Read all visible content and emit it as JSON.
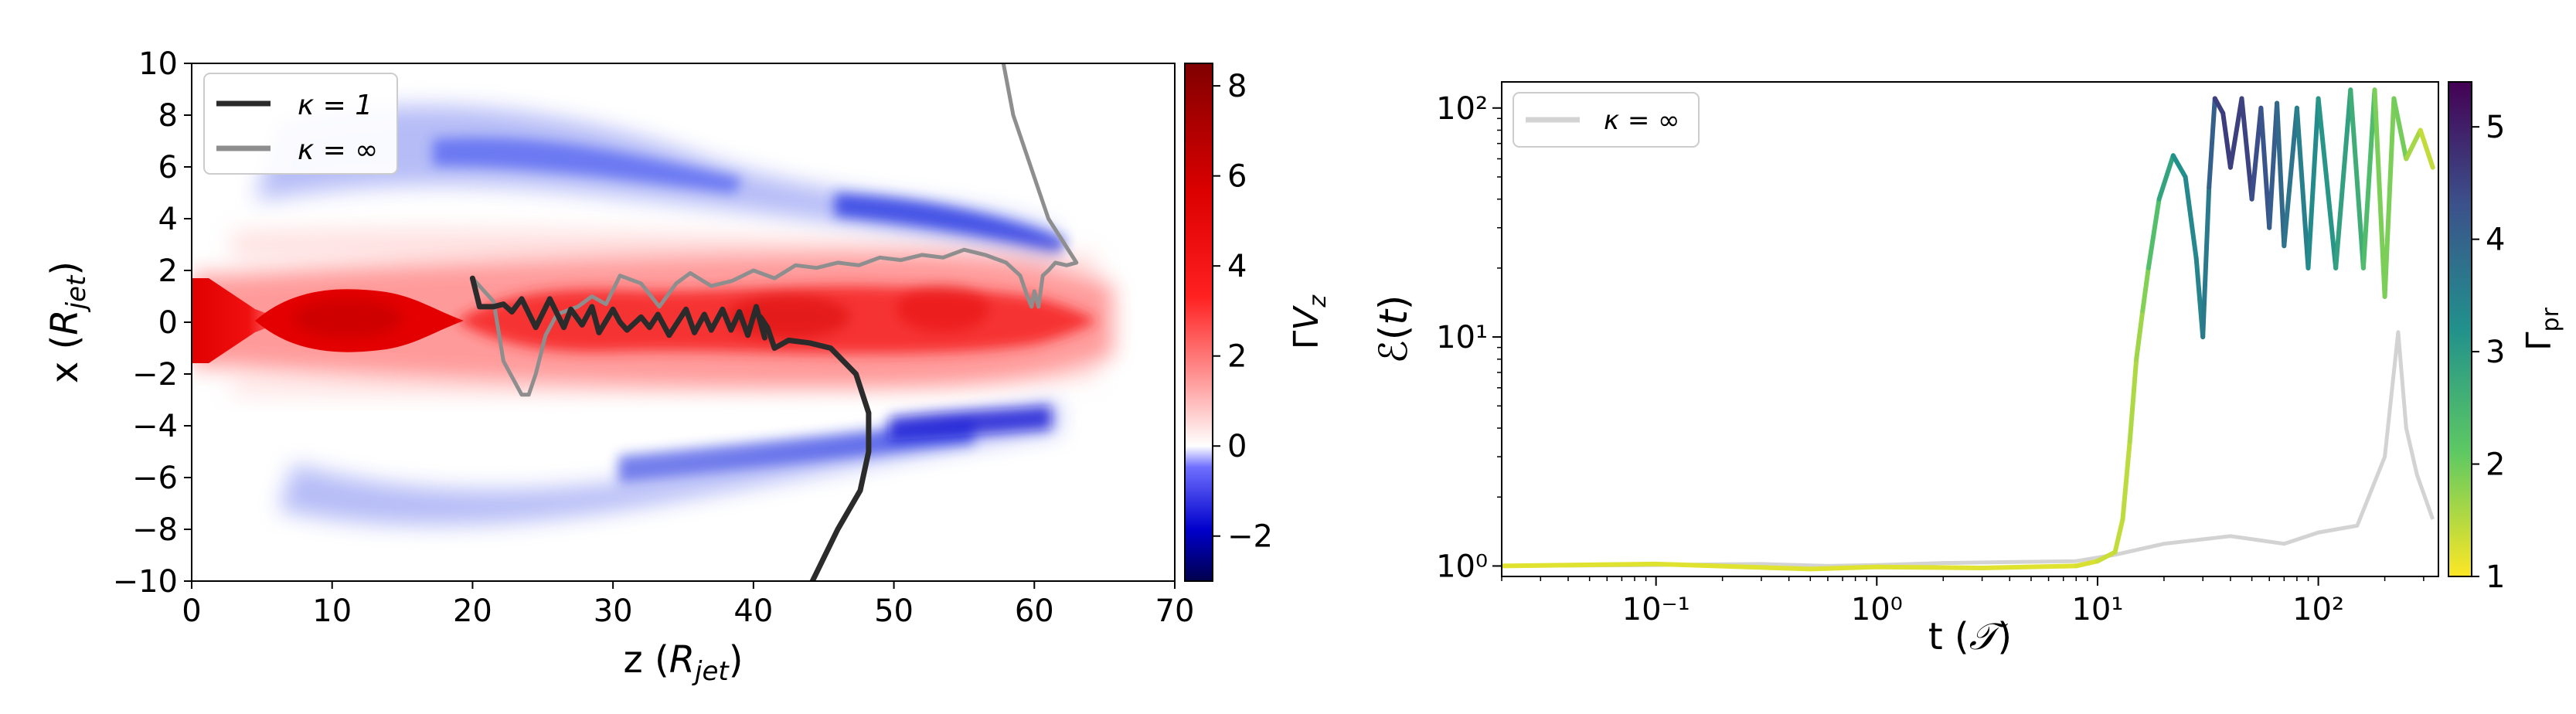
{
  "chart_data": [
    {
      "type": "heatmap",
      "xlabel": "z (R_jet)",
      "ylabel": "x (R_jet)",
      "xlim": [
        0,
        70
      ],
      "ylim": [
        -10,
        10
      ],
      "x_ticks": [
        "0",
        "10",
        "20",
        "30",
        "40",
        "50",
        "60",
        "70"
      ],
      "y_ticks": [
        "10",
        "8",
        "6",
        "4",
        "2",
        "0",
        "−2",
        "−4",
        "−6",
        "−8",
        "−10"
      ],
      "colorbar": {
        "label": "ΓV_z",
        "range": [
          -3,
          8.5
        ],
        "ticks": [
          "8",
          "6",
          "4",
          "2",
          "0",
          "−2"
        ],
        "colormap": "seismic"
      },
      "legend": {
        "placement": "top-left",
        "entries": [
          "κ = 1",
          "κ = ∞"
        ]
      },
      "series": [
        {
          "name": "κ = 1",
          "color": "#2b2b2b",
          "points": [
            [
              44.2,
              -10.0
            ],
            [
              46.0,
              -8.0
            ],
            [
              47.6,
              -6.5
            ],
            [
              48.2,
              -5.0
            ],
            [
              48.2,
              -3.5
            ],
            [
              47.3,
              -2.0
            ],
            [
              45.5,
              -1.0
            ],
            [
              44.0,
              -0.8
            ],
            [
              42.5,
              -0.7
            ],
            [
              41.5,
              -1.0
            ],
            [
              41.0,
              -0.2
            ],
            [
              40.5,
              0.2
            ],
            [
              40.8,
              -0.6
            ],
            [
              40.2,
              0.6
            ],
            [
              39.6,
              -0.5
            ],
            [
              39.0,
              0.4
            ],
            [
              38.4,
              -0.3
            ],
            [
              37.8,
              0.5
            ],
            [
              37.0,
              -0.3
            ],
            [
              36.5,
              0.3
            ],
            [
              35.8,
              -0.4
            ],
            [
              35.2,
              0.5
            ],
            [
              34.6,
              0.0
            ],
            [
              34.0,
              -0.5
            ],
            [
              33.2,
              0.3
            ],
            [
              32.6,
              -0.2
            ],
            [
              32.0,
              0.2
            ],
            [
              31.0,
              -0.3
            ],
            [
              30.5,
              0.0
            ],
            [
              30.0,
              0.5
            ],
            [
              29.0,
              -0.4
            ],
            [
              28.5,
              0.6
            ],
            [
              27.8,
              -0.1
            ],
            [
              27.0,
              0.5
            ],
            [
              26.5,
              -0.2
            ],
            [
              25.5,
              0.9
            ],
            [
              24.5,
              -0.2
            ],
            [
              23.5,
              0.9
            ],
            [
              22.8,
              0.4
            ],
            [
              22.2,
              0.7
            ],
            [
              21.5,
              0.6
            ],
            [
              20.5,
              0.6
            ],
            [
              20.0,
              1.7
            ]
          ]
        },
        {
          "name": "κ = ∞",
          "color": "#8e8e8e",
          "points": [
            [
              20.0,
              1.7
            ],
            [
              21.5,
              0.8
            ],
            [
              22.2,
              -1.5
            ],
            [
              23.5,
              -2.8
            ],
            [
              24.0,
              -2.8
            ],
            [
              24.5,
              -2.0
            ],
            [
              25.2,
              -0.5
            ],
            [
              26.0,
              0.3
            ],
            [
              27.5,
              0.6
            ],
            [
              28.5,
              1.0
            ],
            [
              29.5,
              0.7
            ],
            [
              30.5,
              1.8
            ],
            [
              32.0,
              1.5
            ],
            [
              33.3,
              0.6
            ],
            [
              34.5,
              1.5
            ],
            [
              35.5,
              1.9
            ],
            [
              37.0,
              1.4
            ],
            [
              38.5,
              1.6
            ],
            [
              40.0,
              2.0
            ],
            [
              41.5,
              1.7
            ],
            [
              43.0,
              2.2
            ],
            [
              44.5,
              2.1
            ],
            [
              46.0,
              2.3
            ],
            [
              47.5,
              2.2
            ],
            [
              49.0,
              2.5
            ],
            [
              50.5,
              2.4
            ],
            [
              52.0,
              2.6
            ],
            [
              53.5,
              2.5
            ],
            [
              55.0,
              2.8
            ],
            [
              56.5,
              2.6
            ],
            [
              58.0,
              2.3
            ],
            [
              59.0,
              1.8
            ],
            [
              59.5,
              1.0
            ],
            [
              59.8,
              0.6
            ],
            [
              60.0,
              1.2
            ],
            [
              60.3,
              0.6
            ],
            [
              60.6,
              1.8
            ],
            [
              61.0,
              2.0
            ],
            [
              61.5,
              2.3
            ],
            [
              62.3,
              2.2
            ],
            [
              63.0,
              2.3
            ],
            [
              61.0,
              4.0
            ],
            [
              58.5,
              8.0
            ],
            [
              57.8,
              10.0
            ]
          ]
        }
      ]
    },
    {
      "type": "line",
      "xlabel": "t (𝒯)",
      "ylabel": "ℰ(t)",
      "xscale": "log",
      "yscale": "log",
      "xlim": [
        0.02,
        350
      ],
      "ylim": [
        0.9,
        130
      ],
      "x_ticks": [
        "10⁻¹",
        "10⁰",
        "10¹",
        "10²"
      ],
      "y_ticks": [
        "10²",
        "10¹",
        "10⁰"
      ],
      "colorbar": {
        "label": "Γ_pr",
        "range": [
          1,
          5.4
        ],
        "ticks": [
          "5",
          "4",
          "3",
          "2",
          "1"
        ],
        "colormap": "viridis_r"
      },
      "legend": {
        "placement": "top-left",
        "entries": [
          "κ = ∞"
        ]
      },
      "series": [
        {
          "name": "κ = ∞",
          "color": "#d3d3d3",
          "points": [
            [
              0.02,
              1.0
            ],
            [
              0.1,
              1.01
            ],
            [
              0.3,
              1.02
            ],
            [
              0.6,
              1.0
            ],
            [
              1.0,
              1.01
            ],
            [
              2.0,
              1.03
            ],
            [
              4.0,
              1.04
            ],
            [
              8.0,
              1.05
            ],
            [
              12.0,
              1.12
            ],
            [
              20.0,
              1.25
            ],
            [
              40.0,
              1.35
            ],
            [
              70.0,
              1.25
            ],
            [
              100.0,
              1.4
            ],
            [
              150.0,
              1.5
            ],
            [
              200.0,
              3.0
            ],
            [
              230.0,
              10.5
            ],
            [
              250.0,
              4.0
            ],
            [
              280.0,
              2.5
            ],
            [
              330.0,
              1.6
            ]
          ]
        },
        {
          "name": "",
          "colored_by": "Γ_pr",
          "points": [
            [
              0.02,
              1.0,
              1.2
            ],
            [
              0.1,
              1.02,
              1.2
            ],
            [
              0.5,
              0.97,
              1.2
            ],
            [
              1.0,
              0.99,
              1.2
            ],
            [
              3.0,
              0.98,
              1.2
            ],
            [
              8.0,
              1.0,
              1.2
            ],
            [
              10.0,
              1.05,
              1.3
            ],
            [
              12.0,
              1.15,
              1.4
            ],
            [
              13.0,
              1.6,
              1.4
            ],
            [
              14.0,
              3.5,
              1.5
            ],
            [
              15.0,
              8.0,
              1.6
            ],
            [
              16.0,
              13.0,
              1.7
            ],
            [
              17.0,
              20.0,
              2.0
            ],
            [
              19.0,
              40.0,
              2.6
            ],
            [
              22.0,
              62.0,
              3.1
            ],
            [
              25.0,
              50.0,
              3.3
            ],
            [
              28.0,
              22.0,
              3.4
            ],
            [
              30.0,
              10.0,
              3.5
            ],
            [
              32.0,
              45.0,
              3.7
            ],
            [
              34.0,
              110.0,
              4.4
            ],
            [
              37.0,
              95.0,
              4.7
            ],
            [
              40.0,
              55.0,
              4.5
            ],
            [
              45.0,
              110.0,
              4.6
            ],
            [
              50.0,
              40.0,
              4.4
            ],
            [
              55.0,
              100.0,
              4.3
            ],
            [
              60.0,
              30.0,
              4.2
            ],
            [
              65.0,
              105.0,
              4.0
            ],
            [
              70.0,
              25.0,
              3.8
            ],
            [
              80.0,
              100.0,
              3.6
            ],
            [
              90.0,
              20.0,
              3.4
            ],
            [
              100.0,
              110.0,
              3.2
            ],
            [
              120.0,
              20.0,
              3.0
            ],
            [
              140.0,
              120.0,
              2.8
            ],
            [
              160.0,
              20.0,
              2.5
            ],
            [
              180.0,
              120.0,
              2.2
            ],
            [
              200.0,
              15.0,
              1.6
            ],
            [
              220.0,
              110.0,
              2.2
            ],
            [
              250.0,
              60.0,
              1.7
            ],
            [
              290.0,
              80.0,
              1.5
            ],
            [
              330.0,
              55.0,
              1.3
            ]
          ]
        }
      ]
    }
  ]
}
